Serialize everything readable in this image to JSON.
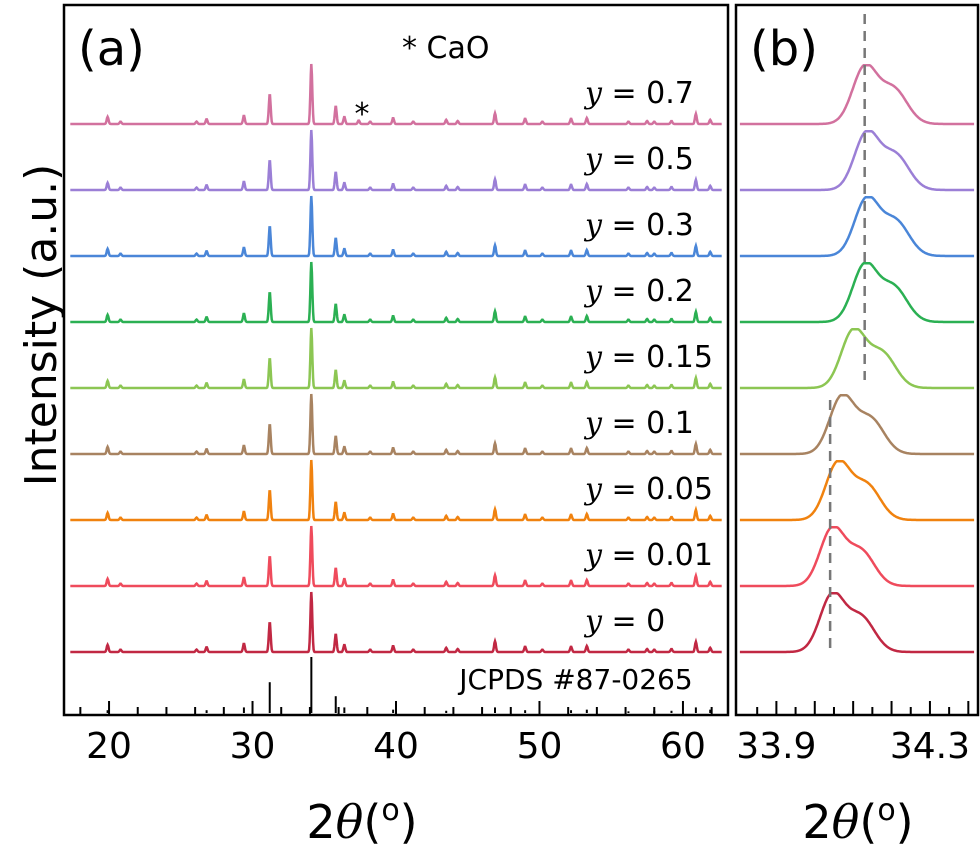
{
  "y_axis_label": "Intensity (a.u.)",
  "x_axis_label": {
    "symbol": "θ",
    "prefix": "2",
    "unit": "(o)"
  },
  "panels": {
    "a": {
      "label": "(a)",
      "annotation": "* CaO",
      "marker": "*",
      "reference": "JCPDS #87-0265"
    },
    "b": {
      "label": "(b)"
    }
  },
  "chart_data": [
    {
      "type": "line",
      "panel": "(a)",
      "xlabel": "2θ (o)",
      "ylabel": "Intensity (a.u.)",
      "xlim": [
        17,
        63
      ],
      "xticks": [
        20,
        30,
        40,
        50,
        60
      ],
      "xticklabels": [
        "20",
        "30",
        "40",
        "50",
        "60"
      ],
      "grid": false,
      "series": [
        {
          "name": "y = 0.7",
          "color": "#d2719e",
          "caO_peak": 37.4
        },
        {
          "name": "y = 0.5",
          "color": "#9b7fd6"
        },
        {
          "name": "y = 0.3",
          "color": "#4a86d8"
        },
        {
          "name": "y = 0.2",
          "color": "#2bb053"
        },
        {
          "name": "y = 0.15",
          "color": "#8cc653"
        },
        {
          "name": "y = 0.1",
          "color": "#a88361"
        },
        {
          "name": "y = 0.05",
          "color": "#f0820f"
        },
        {
          "name": "y = 0.01",
          "color": "#ef4b5c"
        },
        {
          "name": "y = 0",
          "color": "#c12843"
        }
      ],
      "peaks": [
        {
          "x": 19.9,
          "h": 0.12
        },
        {
          "x": 20.8,
          "h": 0.04
        },
        {
          "x": 26.1,
          "h": 0.04
        },
        {
          "x": 26.8,
          "h": 0.08
        },
        {
          "x": 29.4,
          "h": 0.14
        },
        {
          "x": 31.2,
          "h": 0.5
        },
        {
          "x": 34.1,
          "h": 1.0
        },
        {
          "x": 35.8,
          "h": 0.3
        },
        {
          "x": 36.4,
          "h": 0.12
        },
        {
          "x": 38.2,
          "h": 0.04
        },
        {
          "x": 39.8,
          "h": 0.1
        },
        {
          "x": 41.2,
          "h": 0.04
        },
        {
          "x": 43.5,
          "h": 0.07
        },
        {
          "x": 44.3,
          "h": 0.05
        },
        {
          "x": 46.9,
          "h": 0.18
        },
        {
          "x": 49.0,
          "h": 0.09
        },
        {
          "x": 50.2,
          "h": 0.04
        },
        {
          "x": 52.2,
          "h": 0.09
        },
        {
          "x": 53.3,
          "h": 0.1
        },
        {
          "x": 56.2,
          "h": 0.04
        },
        {
          "x": 57.5,
          "h": 0.05
        },
        {
          "x": 58.0,
          "h": 0.04
        },
        {
          "x": 59.2,
          "h": 0.05
        },
        {
          "x": 60.9,
          "h": 0.17
        },
        {
          "x": 61.9,
          "h": 0.07
        }
      ],
      "reference_lines": [
        {
          "x": 19.9,
          "h": 0.05
        },
        {
          "x": 26.8,
          "h": 0.05
        },
        {
          "x": 29.4,
          "h": 0.1
        },
        {
          "x": 31.2,
          "h": 0.55
        },
        {
          "x": 34.1,
          "h": 1.0
        },
        {
          "x": 35.8,
          "h": 0.3
        },
        {
          "x": 36.4,
          "h": 0.1
        },
        {
          "x": 39.8,
          "h": 0.06
        },
        {
          "x": 43.5,
          "h": 0.04
        },
        {
          "x": 46.9,
          "h": 0.1
        },
        {
          "x": 49.0,
          "h": 0.05
        },
        {
          "x": 52.2,
          "h": 0.05
        },
        {
          "x": 53.3,
          "h": 0.06
        },
        {
          "x": 56.2,
          "h": 0.03
        },
        {
          "x": 58.0,
          "h": 0.04
        },
        {
          "x": 59.2,
          "h": 0.04
        },
        {
          "x": 60.9,
          "h": 0.1
        },
        {
          "x": 61.9,
          "h": 0.06
        }
      ]
    },
    {
      "type": "line",
      "panel": "(b)",
      "xlabel": "2θ (o)",
      "xlim": [
        33.8,
        34.42
      ],
      "xticks": [
        33.9,
        34.0,
        34.1,
        34.2,
        34.3,
        34.4
      ],
      "xticklabels": [
        "33.9",
        "",
        "",
        "",
        "34.3",
        ""
      ],
      "dashed_lines": [
        34.04,
        34.13
      ],
      "series": [
        {
          "name": "y = 0.7",
          "peak_center": 34.13
        },
        {
          "name": "y = 0.5",
          "peak_center": 34.135
        },
        {
          "name": "y = 0.3",
          "peak_center": 34.135
        },
        {
          "name": "y = 0.2",
          "peak_center": 34.13
        },
        {
          "name": "y = 0.15",
          "peak_center": 34.1
        },
        {
          "name": "y = 0.1",
          "peak_center": 34.07
        },
        {
          "name": "y = 0.05",
          "peak_center": 34.06
        },
        {
          "name": "y = 0.01",
          "peak_center": 34.045
        },
        {
          "name": "y = 0",
          "peak_center": 34.045
        }
      ]
    }
  ]
}
